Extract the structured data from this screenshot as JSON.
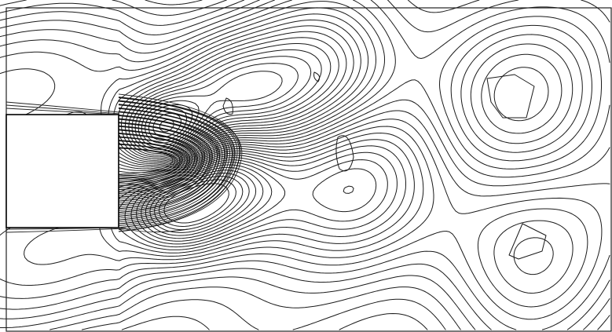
{
  "figure": {
    "kind": "isoline contour plot",
    "colors": {
      "background": "#ffffff",
      "lines": "#1a1a1a"
    }
  }
}
